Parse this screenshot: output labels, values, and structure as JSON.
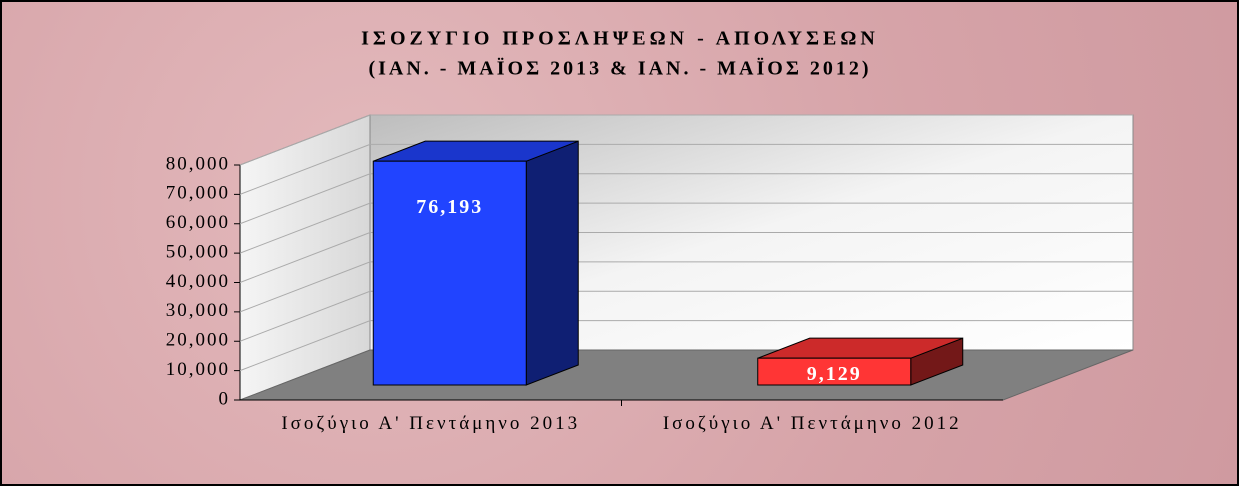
{
  "chart_data": {
    "type": "bar3d",
    "title": "ΙΣΟΖΥΓΙΟ ΠΡΟΣΛΗΨΕΩΝ - ΑΠΟΛΥΣΕΩΝ",
    "subtitle": "(ΙΑΝ. - ΜΑΪΟΣ 2013 & ΙΑΝ. - ΜΑΪΟΣ 2012)",
    "categories": [
      "Ισοζύγιο Α' Πεντάμηνο 2013",
      "Ισοζύγιο Α' Πεντάμηνο 2012"
    ],
    "values": [
      76193,
      9129
    ],
    "value_labels": [
      "76,193",
      "9,129"
    ],
    "colors": [
      "#2144ff",
      "#ff3535"
    ],
    "ylim": [
      0,
      80000
    ],
    "yticks": [
      0,
      {
        "value": 10000,
        "label": "10,000"
      },
      {
        "value": 20000,
        "label": "20,000"
      },
      {
        "value": 30000,
        "label": "30,000"
      },
      {
        "value": 40000,
        "label": "40,000"
      },
      {
        "value": 50000,
        "label": "50,000"
      },
      {
        "value": 60000,
        "label": "60,000"
      },
      {
        "value": 70000,
        "label": "70,000"
      },
      {
        "value": 80000,
        "label": "80,000"
      }
    ],
    "grid": true
  }
}
